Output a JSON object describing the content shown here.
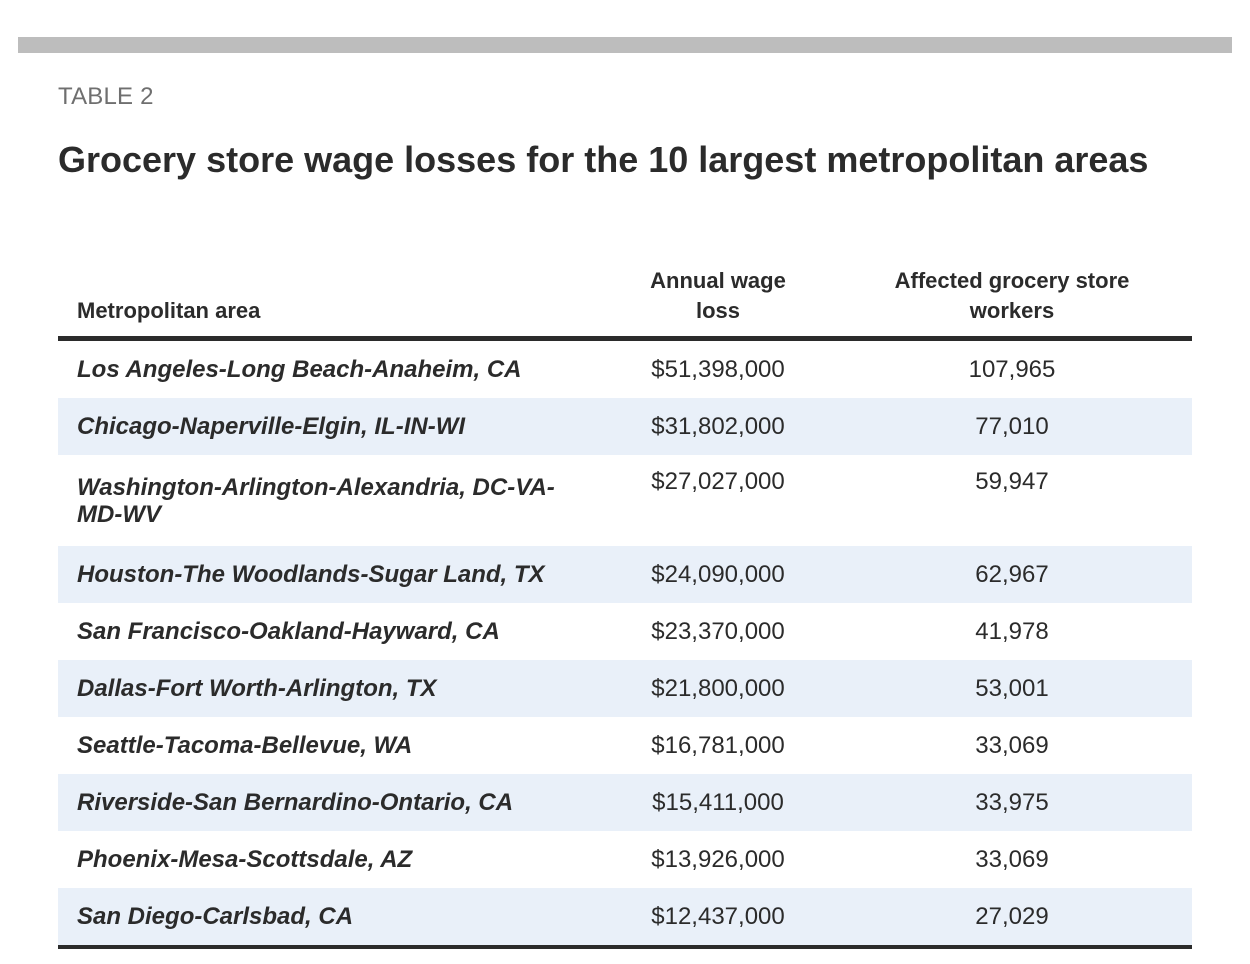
{
  "label": "TABLE 2",
  "title": "Grocery store wage losses for the 10 largest metropolitan areas",
  "columns": {
    "area": "Metropolitan area",
    "wage_loss_line1": "Annual wage",
    "wage_loss_line2": "loss",
    "workers_line1": "Affected grocery store",
    "workers_line2": "workers"
  },
  "rows": [
    {
      "area": "Los Angeles-Long Beach-Anaheim, CA",
      "wage_loss": "$51,398,000",
      "workers": "107,965"
    },
    {
      "area": "Chicago-Naperville-Elgin, IL-IN-WI",
      "wage_loss": "$31,802,000",
      "workers": "77,010"
    },
    {
      "area": "Washington-Arlington-Alexandria, DC-VA-MD-WV",
      "wage_loss": "$27,027,000",
      "workers": "59,947"
    },
    {
      "area": "Houston-The Woodlands-Sugar Land, TX",
      "wage_loss": "$24,090,000",
      "workers": "62,967"
    },
    {
      "area": "San Francisco-Oakland-Hayward, CA",
      "wage_loss": "$23,370,000",
      "workers": "41,978"
    },
    {
      "area": "Dallas-Fort Worth-Arlington, TX",
      "wage_loss": "$21,800,000",
      "workers": "53,001"
    },
    {
      "area": "Seattle-Tacoma-Bellevue, WA",
      "wage_loss": "$16,781,000",
      "workers": "33,069"
    },
    {
      "area": "Riverside-San Bernardino-Ontario, CA",
      "wage_loss": "$15,411,000",
      "workers": "33,975"
    },
    {
      "area": "Phoenix-Mesa-Scottsdale, AZ",
      "wage_loss": "$13,926,000",
      "workers": "33,069"
    },
    {
      "area": "San Diego-Carlsbad, CA",
      "wage_loss": "$12,437,000",
      "workers": "27,029"
    }
  ],
  "colors": {
    "band": "#e9f0f9",
    "rule": "#2b2b2b",
    "top_bar": "#bdbdbd"
  }
}
